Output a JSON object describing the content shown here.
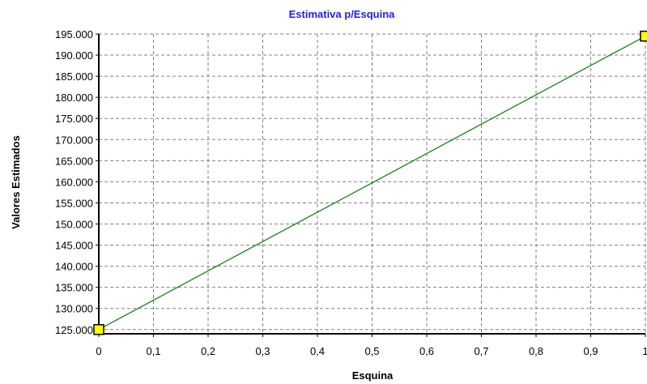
{
  "chart_data": {
    "type": "line",
    "title": "Estimativa p/Esquina",
    "xlabel": "Esquina",
    "ylabel": "Valores Estimados",
    "x_ticks": [
      "0",
      "0,1",
      "0,2",
      "0,3",
      "0,4",
      "0,5",
      "0,6",
      "0,7",
      "0,8",
      "0,9",
      "1"
    ],
    "y_ticks": [
      "195.000",
      "190.000",
      "185.000",
      "180.000",
      "175.000",
      "170.000",
      "165.000",
      "160.000",
      "155.000",
      "150.000",
      "145.000",
      "140.000",
      "135.000",
      "130.000",
      "125.000"
    ],
    "xlim": [
      0,
      1
    ],
    "ylim": [
      124000,
      195000
    ],
    "grid": true,
    "series": [
      {
        "x": [
          0,
          1
        ],
        "y": [
          125000,
          194500
        ]
      }
    ],
    "colors": {
      "title": "#1f1fe8",
      "line": "#008000",
      "marker_fill": "#ffff00",
      "marker_stroke": "#000000",
      "grid": "#808080"
    }
  }
}
